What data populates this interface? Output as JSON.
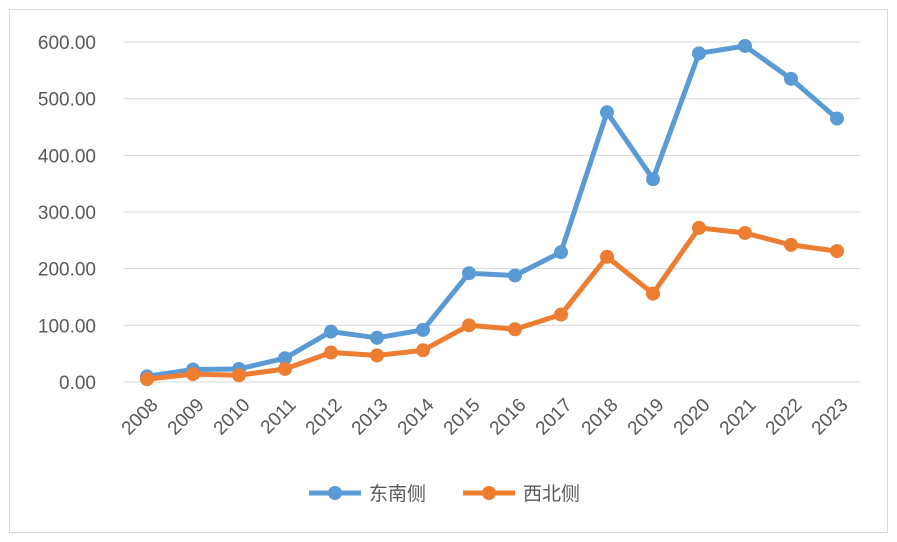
{
  "chart_data": {
    "type": "line",
    "title": "",
    "xlabel": "",
    "ylabel": "",
    "categories": [
      "2008",
      "2009",
      "2010",
      "2011",
      "2012",
      "2013",
      "2014",
      "2015",
      "2016",
      "2017",
      "2018",
      "2019",
      "2020",
      "2021",
      "2022",
      "2023"
    ],
    "ylim": [
      0,
      600
    ],
    "yticks": [
      "0.00",
      "100.00",
      "200.00",
      "300.00",
      "400.00",
      "500.00",
      "600.00"
    ],
    "grid": true,
    "legend_position": "bottom",
    "series": [
      {
        "name": "东南侧",
        "color": "#5b9bd5",
        "values": [
          10,
          22,
          23,
          42,
          89,
          78,
          92,
          192,
          188,
          229,
          476,
          358,
          580,
          593,
          535,
          465
        ]
      },
      {
        "name": "西北侧",
        "color": "#ed7d31",
        "values": [
          5,
          14,
          12,
          23,
          52,
          47,
          56,
          100,
          93,
          119,
          221,
          156,
          272,
          263,
          242,
          231
        ]
      }
    ]
  }
}
